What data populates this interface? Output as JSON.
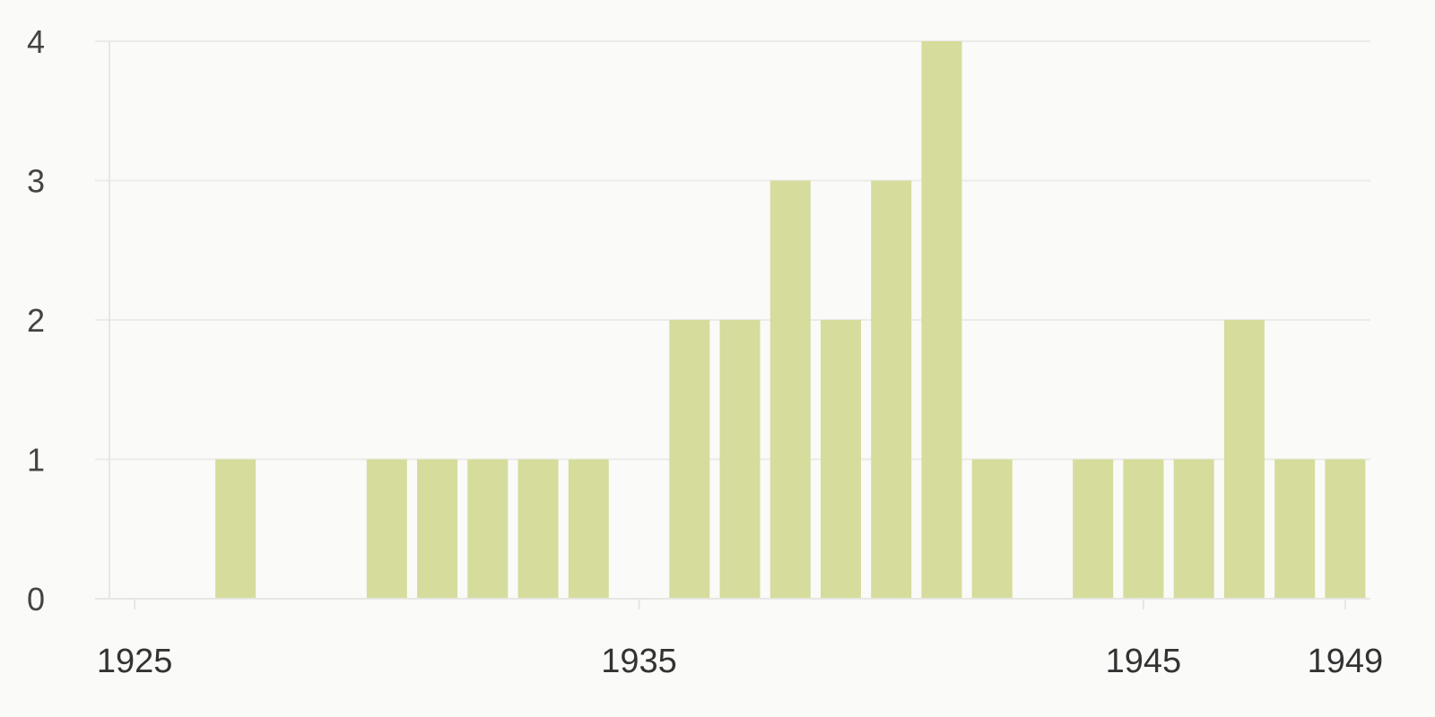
{
  "chart_data": {
    "type": "bar",
    "title": "",
    "xlabel": "",
    "ylabel": "",
    "x": [
      1927,
      1930,
      1931,
      1932,
      1933,
      1934,
      1936,
      1937,
      1938,
      1939,
      1940,
      1941,
      1942,
      1944,
      1945,
      1946,
      1947,
      1948,
      1949
    ],
    "values": [
      1,
      1,
      1,
      1,
      1,
      1,
      2,
      2,
      3,
      2,
      3,
      4,
      1,
      1,
      1,
      1,
      2,
      1,
      1
    ],
    "xlim": [
      1924.5,
      1949.5
    ],
    "ylim": [
      0,
      4
    ],
    "x_ticks": [
      "1925",
      "1935",
      "1945",
      "1949"
    ],
    "y_ticks": [
      "0",
      "1",
      "2",
      "3",
      "4"
    ],
    "grid": true,
    "legend": "none",
    "bar_color": "#d6dc9c"
  }
}
